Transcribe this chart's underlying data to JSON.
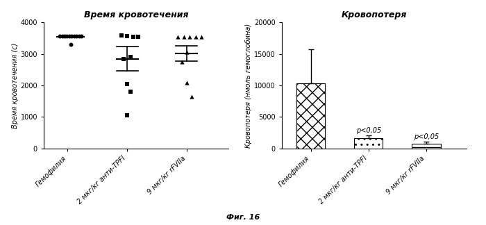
{
  "left_title": "Время кровотечения",
  "left_ylabel": "Время кровотечения (с)",
  "left_categories": [
    "Гемофилия",
    "2 мкг/кг анти-ТPFI",
    "9 мкг/кг rFVIIa"
  ],
  "left_ylim": [
    0,
    4000
  ],
  "left_yticks": [
    0,
    1000,
    2000,
    3000,
    4000
  ],
  "scatter_group1_y": [
    3560,
    3560,
    3560,
    3560,
    3560,
    3560,
    3560,
    3560,
    3560,
    3560,
    3300
  ],
  "scatter_group1_x": [
    -0.13,
    -0.09,
    -0.05,
    -0.01,
    0.03,
    0.07,
    0.11,
    0.15,
    0.19,
    0.23,
    0.05
  ],
  "scatter_group2_y": [
    3600,
    3570,
    3555,
    3555,
    2050,
    1800,
    1050,
    2850,
    2900
  ],
  "scatter_group2_x": [
    -0.1,
    0.0,
    0.1,
    0.18,
    0.0,
    0.06,
    0.0,
    -0.06,
    0.06
  ],
  "scatter_group2_mean": 2850,
  "scatter_group2_sem": 380,
  "scatter_group3_y": [
    3555,
    3555,
    3555,
    3548,
    3545,
    2750,
    2080,
    1650,
    3050
  ],
  "scatter_group3_x": [
    -0.15,
    -0.05,
    0.05,
    0.15,
    0.25,
    -0.08,
    0.0,
    0.08,
    0.0
  ],
  "scatter_group3_mean": 3020,
  "scatter_group3_sem": 240,
  "right_title": "Кровопотеря",
  "right_ylabel": "Кровопотеря (нмоль гемоглобина)",
  "right_categories": [
    "Гемофилия",
    "2 мкг/кг анти-ТPFI",
    "9 мкг/кг rFVIIa"
  ],
  "right_ylim": [
    0,
    20000
  ],
  "right_yticks": [
    0,
    5000,
    10000,
    15000,
    20000
  ],
  "bar_values": [
    10300,
    1600,
    750
  ],
  "bar_errors": [
    5400,
    450,
    280
  ],
  "p_labels": [
    "",
    "p<0,05",
    "p<0,05"
  ],
  "fig_label": "Фиг. 16",
  "bg_color": "#ffffff",
  "text_color": "#000000"
}
